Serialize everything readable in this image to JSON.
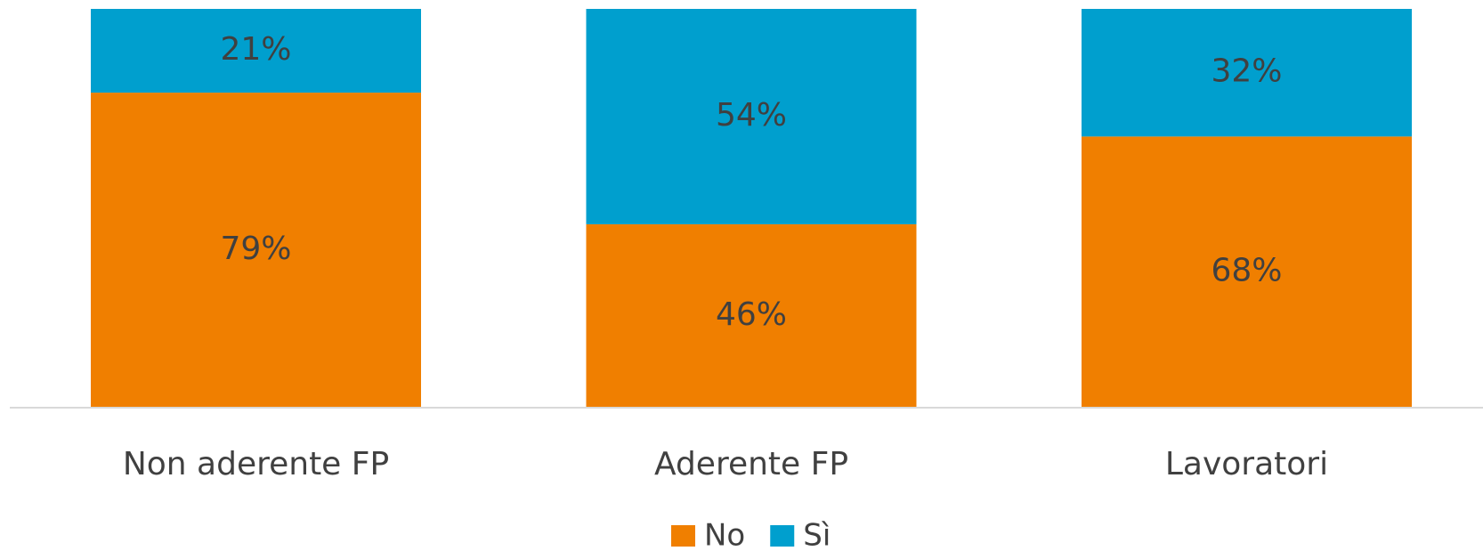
{
  "chart_data": {
    "type": "stacked_bar",
    "categories": [
      "Non aderente FP",
      "Aderente FP",
      "Lavoratori"
    ],
    "series": [
      {
        "name": "No",
        "color": "#f07f00",
        "values": [
          79,
          46,
          68
        ],
        "value_labels": [
          "79%",
          "46%",
          "68%"
        ]
      },
      {
        "name": "Sì",
        "color": "#009fce",
        "values": [
          21,
          54,
          32
        ],
        "value_labels": [
          "21%",
          "54%",
          "32%"
        ]
      }
    ],
    "ylim": [
      0,
      100
    ],
    "legend": "bottom"
  }
}
